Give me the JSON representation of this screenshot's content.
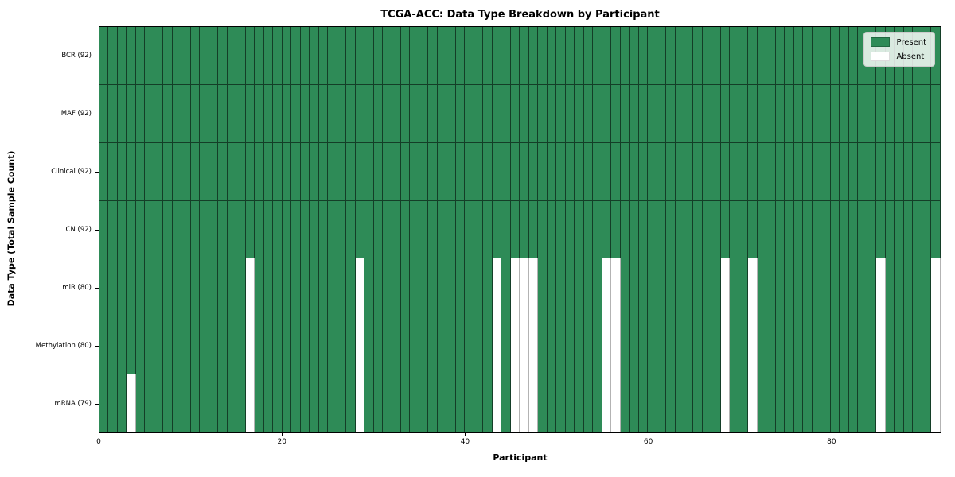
{
  "chart_data": {
    "type": "heatmap",
    "title": "TCGA-ACC: Data Type Breakdown by Participant",
    "xlabel": "Participant",
    "ylabel": "Data Type (Total Sample Count)",
    "n_participants": 92,
    "x_ticks": [
      0,
      20,
      40,
      60,
      80
    ],
    "grid": "cell-borders",
    "legend_position": "upper-right",
    "rows": [
      {
        "label": "BCR (92)",
        "present_count": 92,
        "absent_participants": []
      },
      {
        "label": "MAF (92)",
        "present_count": 92,
        "absent_participants": []
      },
      {
        "label": "Clinical (92)",
        "present_count": 92,
        "absent_participants": []
      },
      {
        "label": "CN (92)",
        "present_count": 92,
        "absent_participants": []
      },
      {
        "label": "miR (80)",
        "present_count": 80,
        "absent_participants": [
          16,
          28,
          43,
          45,
          46,
          47,
          55,
          56,
          68,
          71,
          85,
          91
        ]
      },
      {
        "label": "Methylation (80)",
        "present_count": 80,
        "absent_participants": [
          16,
          28,
          43,
          45,
          46,
          47,
          55,
          56,
          68,
          71,
          85,
          91
        ]
      },
      {
        "label": "mRNA (79)",
        "present_count": 79,
        "absent_participants": [
          3,
          16,
          28,
          43,
          45,
          46,
          47,
          55,
          56,
          68,
          71,
          85,
          91
        ]
      }
    ],
    "legend": [
      {
        "label": "Present",
        "color": "#2e8b57"
      },
      {
        "label": "Absent",
        "color": "#ffffff"
      }
    ],
    "colors": {
      "present": "#2e8b57",
      "absent": "#ffffff",
      "present_border": "rgba(0,0,0,0.55)",
      "absent_border": "#b3b3b3",
      "spine": "#000000"
    }
  }
}
